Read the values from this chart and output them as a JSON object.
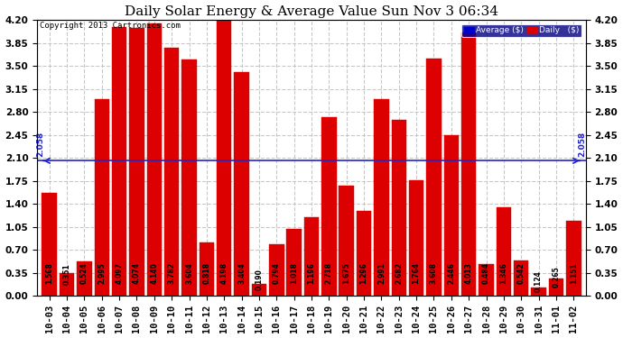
{
  "title": "Daily Solar Energy & Average Value Sun Nov 3 06:34",
  "copyright": "Copyright 2013 Cartronics.com",
  "categories": [
    "10-03",
    "10-04",
    "10-05",
    "10-06",
    "10-07",
    "10-08",
    "10-09",
    "10-10",
    "10-11",
    "10-12",
    "10-13",
    "10-14",
    "10-15",
    "10-16",
    "10-17",
    "10-18",
    "10-19",
    "10-20",
    "10-21",
    "10-22",
    "10-23",
    "10-24",
    "10-25",
    "10-26",
    "10-27",
    "10-28",
    "10-29",
    "10-30",
    "10-31",
    "11-01",
    "11-02"
  ],
  "values": [
    1.568,
    0.351,
    0.524,
    2.995,
    4.097,
    4.074,
    4.14,
    3.782,
    3.604,
    0.818,
    4.198,
    3.404,
    0.19,
    0.794,
    1.018,
    1.196,
    2.718,
    1.675,
    1.296,
    2.991,
    2.682,
    1.764,
    3.608,
    2.446,
    4.013,
    0.484,
    1.346,
    0.542,
    0.124,
    0.265,
    1.151
  ],
  "average": 2.058,
  "bar_color": "#dd0000",
  "avg_line_color": "#2222cc",
  "background_color": "#ffffff",
  "grid_color": "#bbbbbb",
  "ylim": [
    0.0,
    4.2
  ],
  "yticks": [
    0.0,
    0.35,
    0.7,
    1.05,
    1.4,
    1.75,
    2.1,
    2.45,
    2.8,
    3.15,
    3.5,
    3.85,
    4.2
  ],
  "avg_label": "2.058",
  "legend_avg_label": "Average ($)",
  "legend_daily_label": "Daily   ($)",
  "legend_avg_color": "#0000cc",
  "legend_daily_color": "#dd0000",
  "legend_bg_color": "#000080",
  "title_fontsize": 11,
  "tick_fontsize": 7.5,
  "bar_value_fontsize": 5.5,
  "copyright_fontsize": 6.5
}
